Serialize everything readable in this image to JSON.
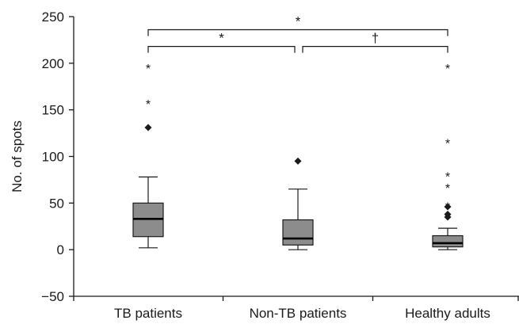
{
  "chart_data": {
    "type": "box",
    "title": "",
    "xlabel": "",
    "ylabel": "No. of spots",
    "ylim": [
      -50,
      250
    ],
    "yticks": [
      -50,
      0,
      50,
      100,
      150,
      200,
      250
    ],
    "grid": false,
    "colors": {
      "box_fill": "#8c8c8c",
      "stroke": "#1a1a1a",
      "median": "#000000"
    },
    "categories": [
      "TB patients",
      "Non-TB patients",
      "Healthy adults"
    ],
    "boxes": [
      {
        "category": "TB patients",
        "whisker_low": 2,
        "q1": 14,
        "median": 33,
        "q3": 50,
        "whisker_high": 78,
        "outliers": [
          131
        ],
        "extremes": [
          160,
          198
        ]
      },
      {
        "category": "Non-TB patients",
        "whisker_low": 0,
        "q1": 5,
        "median": 12,
        "q3": 32,
        "whisker_high": 65,
        "outliers": [
          95
        ],
        "extremes": []
      },
      {
        "category": "Healthy adults",
        "whisker_low": 0,
        "q1": 3,
        "median": 7,
        "q3": 15,
        "whisker_high": 23,
        "outliers": [
          35,
          38,
          46
        ],
        "extremes": [
          50,
          70,
          82,
          118,
          198
        ]
      }
    ],
    "significance": [
      {
        "from": 0,
        "to": 2,
        "y": 236,
        "label": "*"
      },
      {
        "from": 0,
        "to": 1,
        "y": 218,
        "label": "*"
      },
      {
        "from": 1,
        "to": 2,
        "y": 218,
        "label": "†"
      }
    ],
    "outlier_markers": {
      "outlier": "◆",
      "extreme": "*"
    }
  }
}
